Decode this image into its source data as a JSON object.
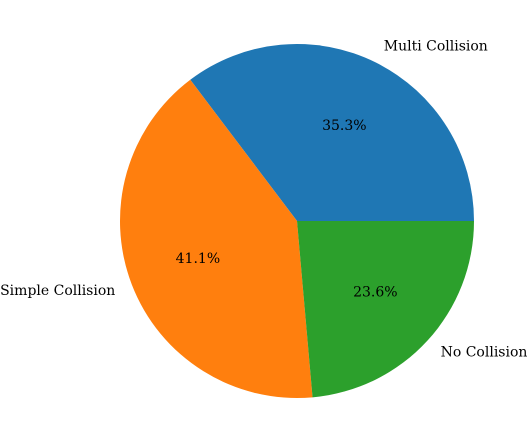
{
  "chart_data": {
    "type": "pie",
    "title": "",
    "labels": [
      "Multi Collision",
      "Simple Collision",
      "No Collision"
    ],
    "values": [
      35.3,
      41.1,
      23.6
    ],
    "percent_labels": [
      "35.3%",
      "41.1%",
      "23.6%"
    ],
    "colors": [
      "#1f77b4",
      "#ff7f0e",
      "#2ca02c"
    ],
    "start_angle_deg": 0,
    "direction": "counterclockwise"
  }
}
